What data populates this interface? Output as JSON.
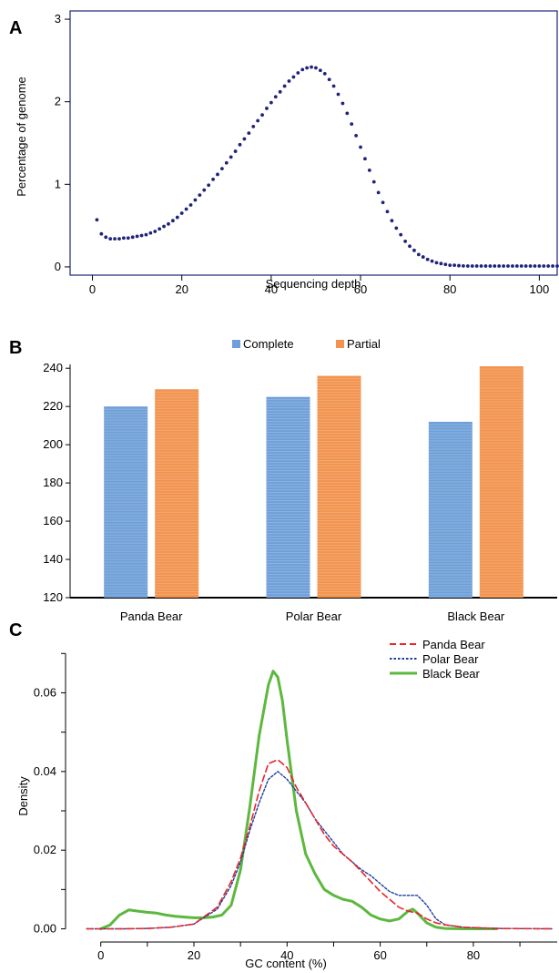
{
  "chart_data": [
    {
      "panel": "A",
      "type": "scatter",
      "xlabel": "Sequencing depth",
      "ylabel": "Percentage of genome",
      "xlim": [
        -5,
        104
      ],
      "ylim": [
        -0.1,
        3.1
      ],
      "xticks": [
        0,
        20,
        40,
        60,
        80,
        100
      ],
      "yticks": [
        0,
        1,
        2,
        3
      ],
      "color": "#1f237a",
      "series": [
        {
          "x": [
            1,
            2,
            3,
            4,
            5,
            6,
            7,
            8,
            9,
            10,
            11,
            12,
            13,
            14,
            15,
            16,
            17,
            18,
            19,
            20,
            21,
            22,
            23,
            24,
            25,
            26,
            27,
            28,
            29,
            30,
            31,
            32,
            33,
            34,
            35,
            36,
            37,
            38,
            39,
            40,
            41,
            42,
            43,
            44,
            45,
            46,
            47,
            48,
            49,
            50,
            51,
            52,
            53,
            54,
            55,
            56,
            57,
            58,
            59,
            60,
            61,
            62,
            63,
            64,
            65,
            66,
            67,
            68,
            69,
            70,
            71,
            72,
            73,
            74,
            75,
            76,
            77,
            78,
            79,
            80,
            81,
            82,
            83,
            84,
            85,
            86,
            87,
            88,
            89,
            90,
            91,
            92,
            93,
            94,
            95,
            96,
            97,
            98,
            99,
            100,
            101,
            102,
            103,
            104
          ],
          "y": [
            0.57,
            0.4,
            0.36,
            0.34,
            0.34,
            0.34,
            0.35,
            0.35,
            0.36,
            0.37,
            0.38,
            0.39,
            0.41,
            0.43,
            0.46,
            0.49,
            0.52,
            0.56,
            0.6,
            0.65,
            0.7,
            0.75,
            0.81,
            0.87,
            0.93,
            0.99,
            1.06,
            1.12,
            1.19,
            1.26,
            1.33,
            1.4,
            1.48,
            1.55,
            1.62,
            1.7,
            1.77,
            1.84,
            1.92,
            1.99,
            2.06,
            2.12,
            2.19,
            2.25,
            2.3,
            2.35,
            2.39,
            2.41,
            2.42,
            2.41,
            2.38,
            2.34,
            2.27,
            2.19,
            2.09,
            1.98,
            1.86,
            1.73,
            1.59,
            1.45,
            1.31,
            1.17,
            1.03,
            0.9,
            0.78,
            0.67,
            0.56,
            0.47,
            0.39,
            0.31,
            0.25,
            0.2,
            0.15,
            0.12,
            0.09,
            0.07,
            0.05,
            0.04,
            0.03,
            0.02,
            0.02,
            0.015,
            0.012,
            0.01,
            0.01,
            0.01,
            0.01,
            0.01,
            0.01,
            0.01,
            0.01,
            0.01,
            0.01,
            0.01,
            0.01,
            0.01,
            0.01,
            0.01,
            0.01,
            0.01,
            0.01,
            0.01,
            0.01,
            0.01
          ]
        }
      ]
    },
    {
      "panel": "B",
      "type": "bar",
      "categories": [
        "Panda Bear",
        "Polar Bear",
        "Black Bear"
      ],
      "ylim": [
        120,
        242
      ],
      "yticks": [
        120,
        140,
        160,
        180,
        200,
        220,
        240
      ],
      "legend": "top",
      "series": [
        {
          "name": "Complete",
          "values": [
            220,
            225,
            212
          ],
          "color": "#6f9fd8"
        },
        {
          "name": "Partial",
          "values": [
            229,
            236,
            241
          ],
          "color": "#f2934e"
        }
      ]
    },
    {
      "panel": "C",
      "type": "line",
      "xlabel": "GC content (%)",
      "ylabel": "Density",
      "xlim": [
        -6,
        98
      ],
      "ylim": [
        -0.0015,
        0.074
      ],
      "xticks": [
        0,
        20,
        40,
        60,
        80
      ],
      "yticks": [
        0.0,
        0.02,
        0.04,
        0.06
      ],
      "ytick_labels": [
        "0.00",
        "0.02",
        "0.04",
        "0.06"
      ],
      "legend": "top-right",
      "series": [
        {
          "name": "Panda Bear",
          "color": "#e8242a",
          "dash": "dashed",
          "x": [
            -3,
            0,
            5,
            10,
            15,
            20,
            25,
            28,
            30,
            32,
            34,
            36,
            38,
            40,
            42,
            44,
            46,
            48,
            50,
            52,
            54,
            56,
            58,
            60,
            62,
            64,
            66,
            68,
            70,
            72,
            74,
            78,
            85,
            97
          ],
          "y": [
            0,
            0,
            0,
            0.0001,
            0.0004,
            0.0012,
            0.0055,
            0.012,
            0.018,
            0.026,
            0.035,
            0.042,
            0.043,
            0.041,
            0.036,
            0.032,
            0.028,
            0.024,
            0.021,
            0.019,
            0.017,
            0.0145,
            0.012,
            0.0095,
            0.0075,
            0.0055,
            0.0045,
            0.004,
            0.0025,
            0.0015,
            0.001,
            0.0004,
            0.0001,
            0
          ]
        },
        {
          "name": "Polar Bear",
          "color": "#1d3f9e",
          "dash": "dotted",
          "x": [
            -3,
            0,
            5,
            10,
            15,
            20,
            25,
            28,
            30,
            32,
            34,
            36,
            38,
            40,
            42,
            44,
            46,
            48,
            50,
            52,
            54,
            56,
            58,
            60,
            62,
            64,
            66,
            68,
            70,
            72,
            74,
            78,
            85,
            97
          ],
          "y": [
            0,
            0,
            0,
            0.0001,
            0.0004,
            0.0012,
            0.005,
            0.011,
            0.017,
            0.025,
            0.032,
            0.038,
            0.04,
            0.038,
            0.035,
            0.032,
            0.028,
            0.025,
            0.022,
            0.019,
            0.017,
            0.015,
            0.0135,
            0.0115,
            0.0095,
            0.0085,
            0.0085,
            0.0085,
            0.006,
            0.0025,
            0.001,
            0.0004,
            0.0001,
            0
          ]
        },
        {
          "name": "Black Bear",
          "color": "#5cb83e",
          "dash": "solid",
          "x": [
            0,
            2,
            4,
            6,
            8,
            10,
            12,
            14,
            16,
            18,
            20,
            22,
            24,
            26,
            28,
            30,
            32,
            34,
            36,
            37,
            38,
            39,
            40,
            42,
            44,
            46,
            48,
            50,
            52,
            54,
            56,
            58,
            60,
            62,
            64,
            66,
            67,
            68,
            70,
            72,
            74,
            78,
            85
          ],
          "y": [
            0,
            0.001,
            0.0035,
            0.0048,
            0.0045,
            0.0042,
            0.004,
            0.0035,
            0.0032,
            0.003,
            0.0028,
            0.0028,
            0.003,
            0.0035,
            0.006,
            0.015,
            0.031,
            0.049,
            0.062,
            0.0655,
            0.064,
            0.058,
            0.048,
            0.03,
            0.019,
            0.014,
            0.01,
            0.0085,
            0.0075,
            0.007,
            0.0055,
            0.0035,
            0.0025,
            0.002,
            0.0025,
            0.0045,
            0.005,
            0.004,
            0.0015,
            0.0004,
            0.0001,
            0,
            0
          ]
        }
      ]
    }
  ]
}
